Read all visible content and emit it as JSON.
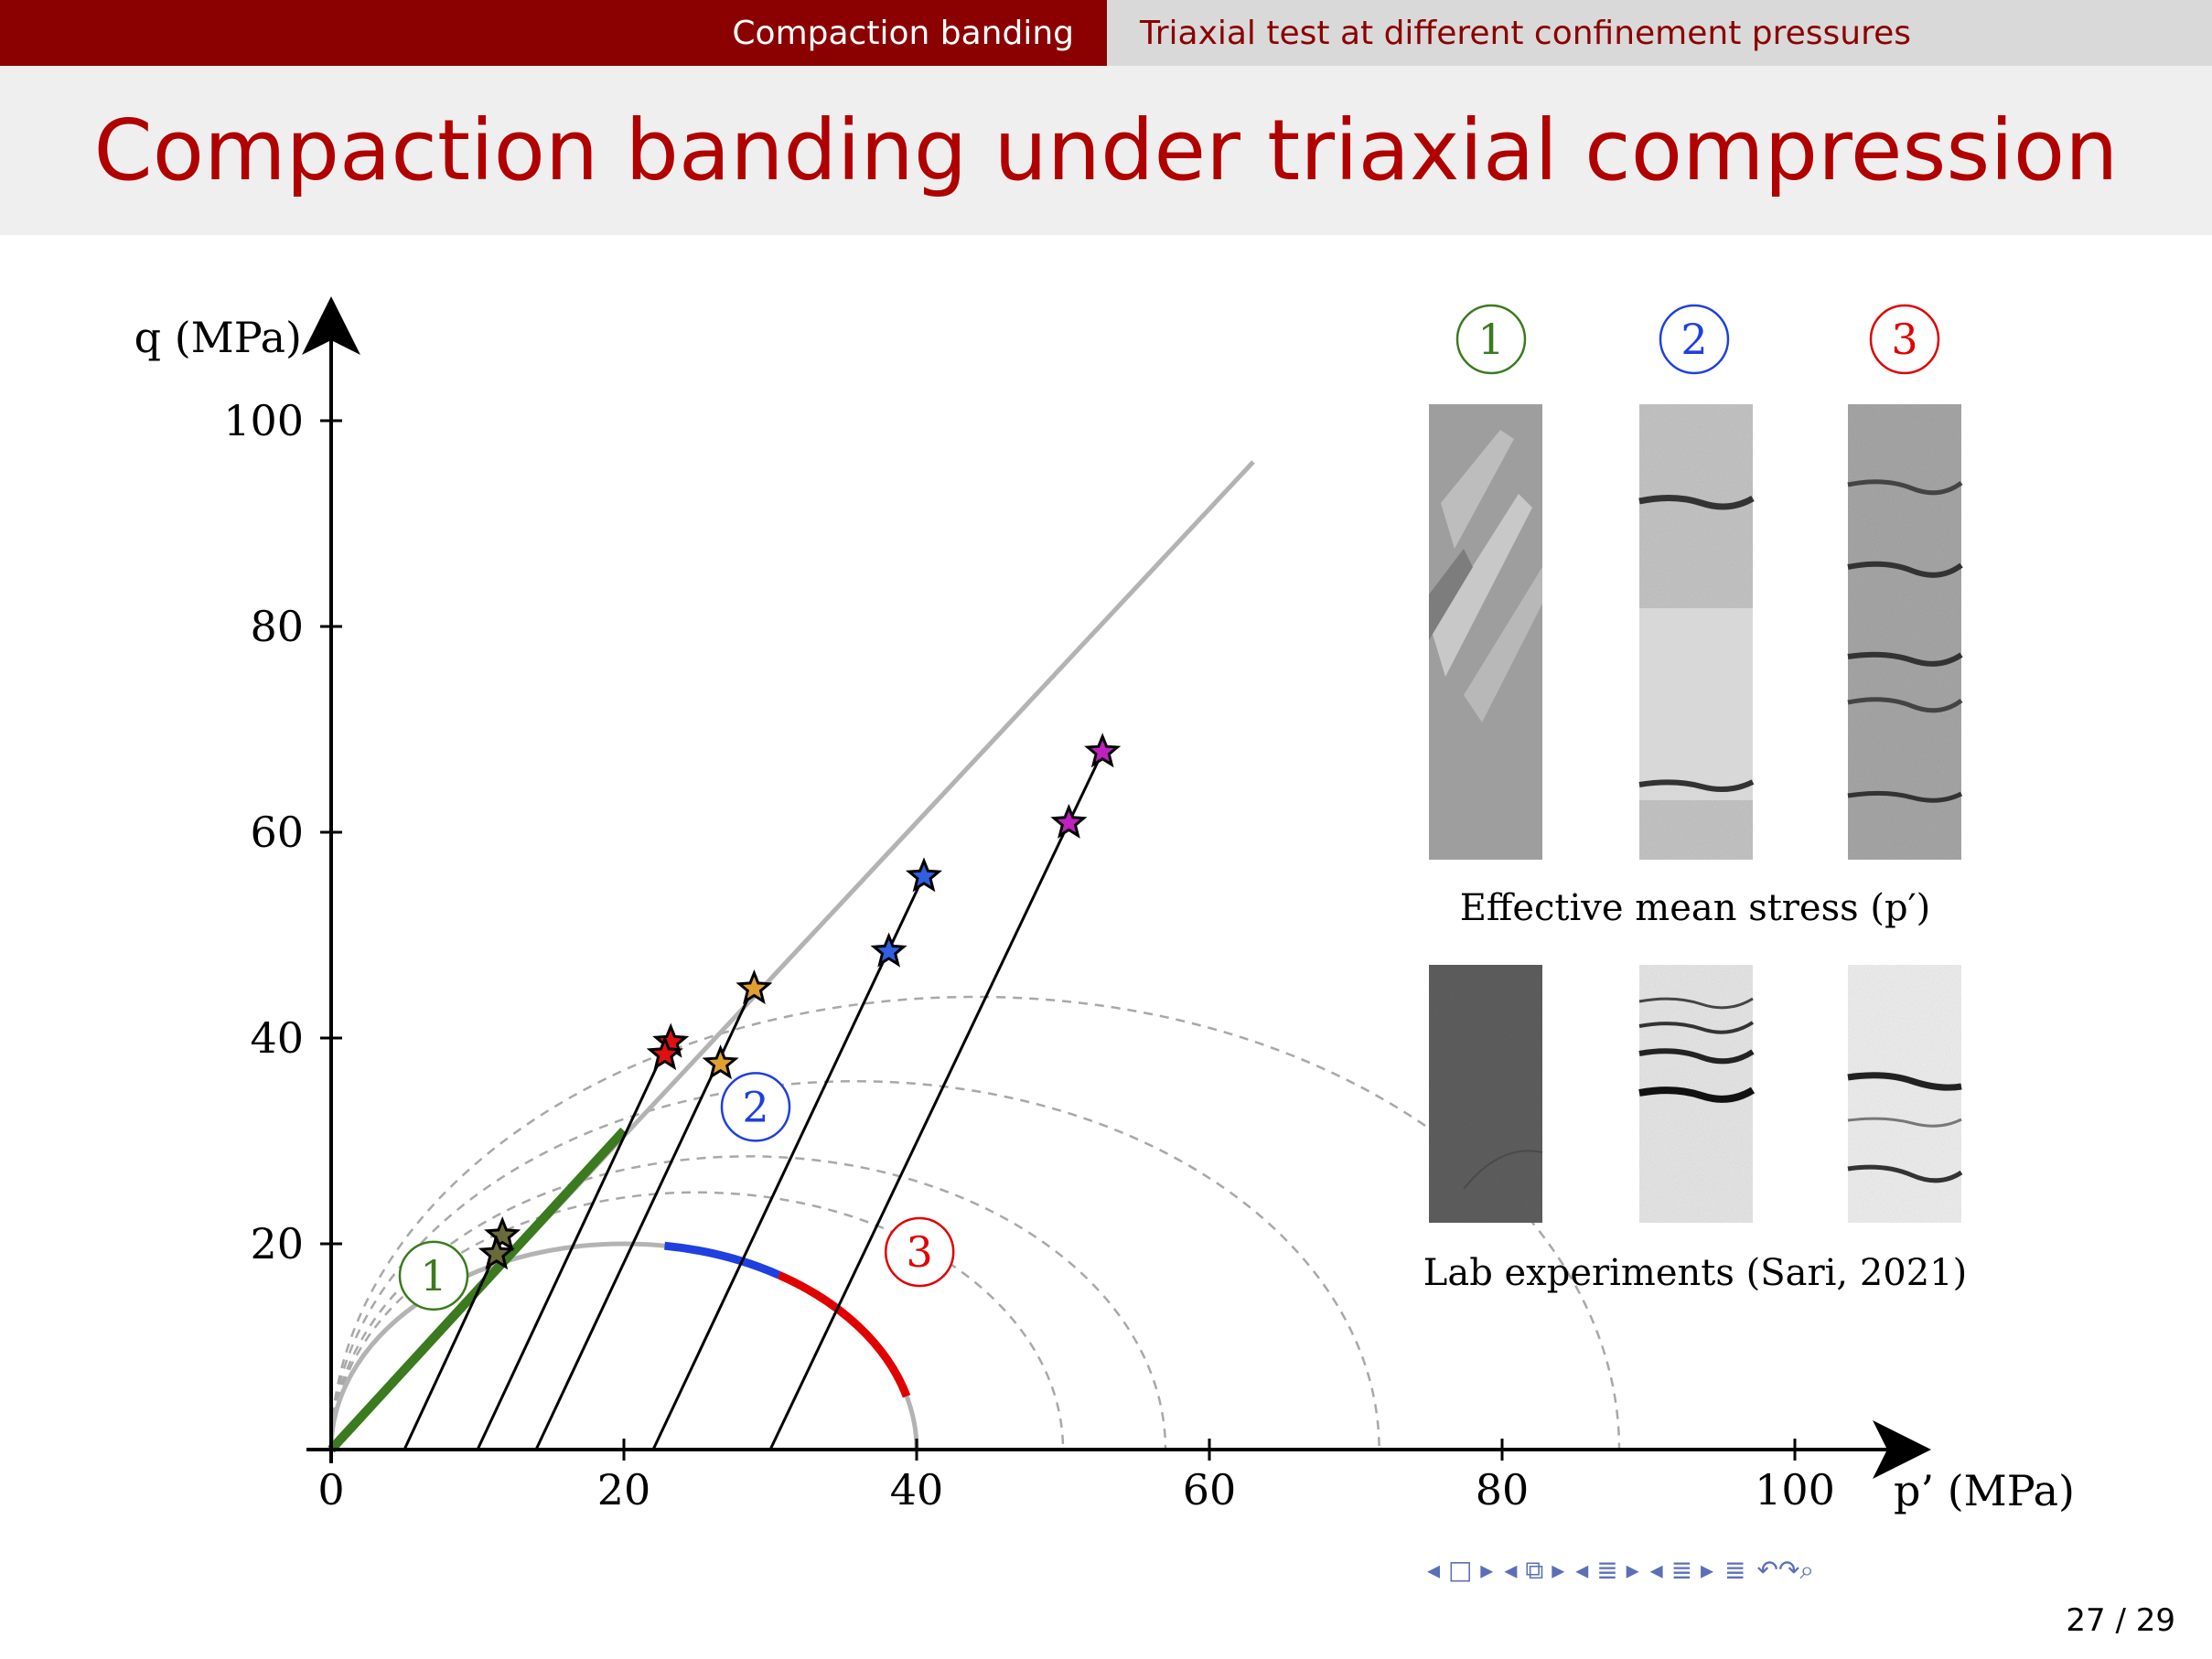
{
  "headline": {
    "section": "Compaction banding",
    "subsection": "Triaxial test at different confinement pressures"
  },
  "title": "Compaction banding under triaxial compression",
  "chart_data": {
    "type": "line",
    "xlabel": "p’ (MPa)",
    "ylabel": "q (MPa)",
    "xlim": [
      0,
      110
    ],
    "ylim": [
      0,
      105
    ],
    "xticks": [
      0,
      20,
      40,
      60,
      80,
      100
    ],
    "yticks": [
      20,
      40,
      60,
      80,
      100
    ],
    "tick_labels_x": [
      "0",
      "20",
      "40",
      "60",
      "80",
      "100"
    ],
    "tick_labels_y": [
      "20",
      "40",
      "60",
      "80",
      "100"
    ],
    "critical_state_line": {
      "from": [
        0,
        0
      ],
      "to": [
        63,
        96
      ],
      "color": "#b3b3b3"
    },
    "cap_center": [
      20,
      0
    ],
    "cap_radius": 20,
    "cap_segments": [
      {
        "name": "1",
        "color": "#3b7a1e",
        "points": [
          [
            0,
            0
          ],
          [
            20,
            31
          ]
        ]
      },
      {
        "name": "2",
        "color": "#1f3fe0",
        "arc_deg": [
          82,
          58
        ]
      },
      {
        "name": "3",
        "color": "#e00000",
        "arc_deg": [
          58,
          15
        ]
      }
    ],
    "yield_envelopes": [
      {
        "center": [
          25,
          0
        ],
        "radius": 25
      },
      {
        "center": [
          28.5,
          0
        ],
        "radius": 28.5
      },
      {
        "center": [
          35.8,
          0
        ],
        "radius": 35.8
      },
      {
        "center": [
          44,
          0
        ],
        "radius": 44
      }
    ],
    "stress_paths": [
      {
        "start": 5,
        "end": [
          11.8,
          20.8
        ],
        "color": "#6b6b3a"
      },
      {
        "start": 10,
        "end": [
          23,
          39.5
        ],
        "color": "#e01010"
      },
      {
        "start": 14,
        "end": [
          28.8,
          44.8
        ],
        "color": "#e0a030"
      },
      {
        "start": 22,
        "end": [
          40.5,
          55.8
        ],
        "color": "#3060e0"
      },
      {
        "start": 30,
        "end": [
          52.7,
          67.8
        ],
        "color": "#c020c0"
      }
    ],
    "stars": [
      {
        "x": 11.7,
        "y": 20.8,
        "color": "#6b6b3a"
      },
      {
        "x": 11.3,
        "y": 19.0,
        "color": "#6b6b3a"
      },
      {
        "x": 23.2,
        "y": 39.6,
        "color": "#e01010"
      },
      {
        "x": 22.8,
        "y": 38.4,
        "color": "#e01010"
      },
      {
        "x": 28.9,
        "y": 44.8,
        "color": "#e0a030"
      },
      {
        "x": 26.6,
        "y": 37.5,
        "color": "#e0a030"
      },
      {
        "x": 40.5,
        "y": 55.7,
        "color": "#3060e0"
      },
      {
        "x": 38.1,
        "y": 48.4,
        "color": "#3060e0"
      },
      {
        "x": 52.7,
        "y": 67.8,
        "color": "#c020c0"
      },
      {
        "x": 50.4,
        "y": 60.9,
        "color": "#c020c0"
      }
    ],
    "region_labels": [
      {
        "text": "1",
        "color": "#3b7a1e",
        "x": 7.0,
        "y": 16.9
      },
      {
        "text": "2",
        "color": "#1f3fe0",
        "x": 29.0,
        "y": 33.3
      },
      {
        "text": "3",
        "color": "#e00000",
        "x": 40.2,
        "y": 19.2
      }
    ]
  },
  "photos": {
    "labels": [
      "1",
      "2",
      "3"
    ],
    "label_colors": [
      "#3b7a1e",
      "#1f3fe0",
      "#e00000"
    ],
    "caption_top": "Effective mean stress  (p′)",
    "caption_bottom": "Lab experiments (Sari, 2021)"
  },
  "nav": {
    "page": "27 / 29"
  }
}
